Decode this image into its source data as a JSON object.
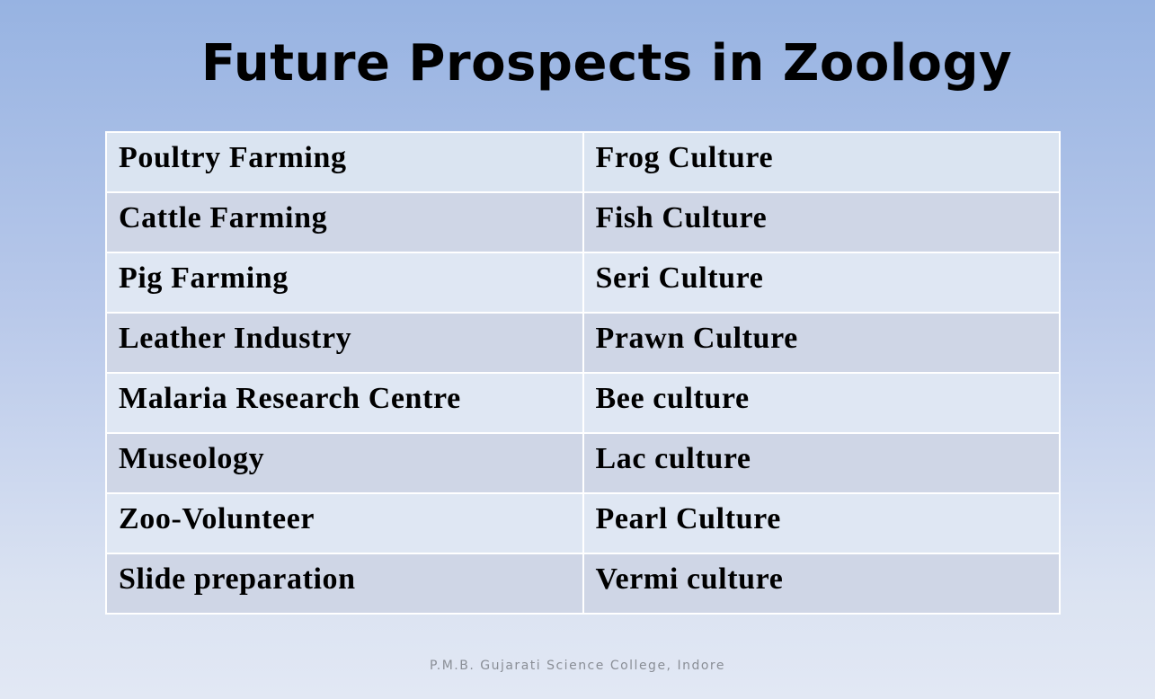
{
  "title": "Future Prospects in Zoology",
  "table": {
    "rows": [
      [
        "Poultry Farming",
        "Frog Culture"
      ],
      [
        "Cattle Farming",
        "Fish Culture"
      ],
      [
        "Pig Farming",
        "Seri Culture"
      ],
      [
        "Leather Industry",
        "Prawn Culture"
      ],
      [
        "Malaria Research Centre",
        "Bee culture"
      ],
      [
        "Museology",
        "Lac culture"
      ],
      [
        "Zoo-Volunteer",
        "Pearl Culture"
      ],
      [
        "Slide preparation",
        "Vermi culture"
      ]
    ]
  },
  "footer": "P.M.B. Gujarati Science College, Indore"
}
